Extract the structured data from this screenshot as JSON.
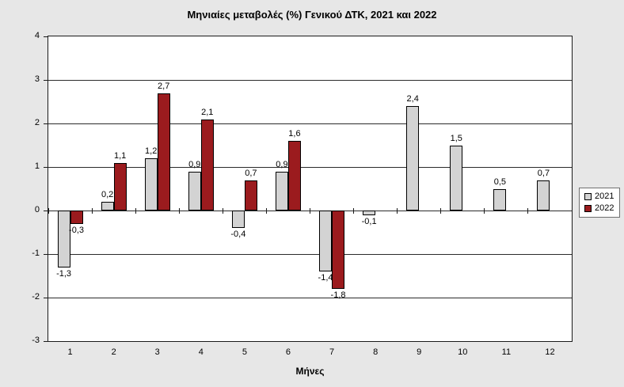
{
  "chart_data": {
    "type": "bar",
    "title": "Μηνιαίες μεταβολές (%) Γενικού ΔΤΚ, 2021 και 2022",
    "xlabel": "Μήνες",
    "ylabel": "",
    "categories": [
      "1",
      "2",
      "3",
      "4",
      "5",
      "6",
      "7",
      "8",
      "9",
      "10",
      "11",
      "12"
    ],
    "series": [
      {
        "name": "2021",
        "color": "#d3d3d3",
        "values": [
          -1.3,
          0.2,
          1.2,
          0.9,
          -0.4,
          0.9,
          -1.4,
          -0.1,
          2.4,
          1.5,
          0.5,
          0.7
        ],
        "labels": [
          "-1,3",
          "0,2",
          "1,2",
          "0,9",
          "-0,4",
          "0,9",
          "-1,4",
          "-0,1",
          "2,4",
          "1,5",
          "0,5",
          "0,7"
        ]
      },
      {
        "name": "2022",
        "color": "#9b1b1e",
        "values": [
          -0.3,
          1.1,
          2.7,
          2.1,
          0.7,
          1.6,
          -1.8,
          null,
          null,
          null,
          null,
          null
        ],
        "labels": [
          "-0,3",
          "1,1",
          "2,7",
          "2,1",
          "0,7",
          "1,6",
          "-1,8",
          null,
          null,
          null,
          null,
          null
        ]
      }
    ],
    "ylim": [
      -3,
      4
    ],
    "yticks": [
      4,
      3,
      2,
      1,
      0,
      -1,
      -2,
      -3
    ],
    "grid": true,
    "legend_position": "right",
    "plot_background": "#ffffff",
    "outer_background": "#e7e7e7"
  }
}
